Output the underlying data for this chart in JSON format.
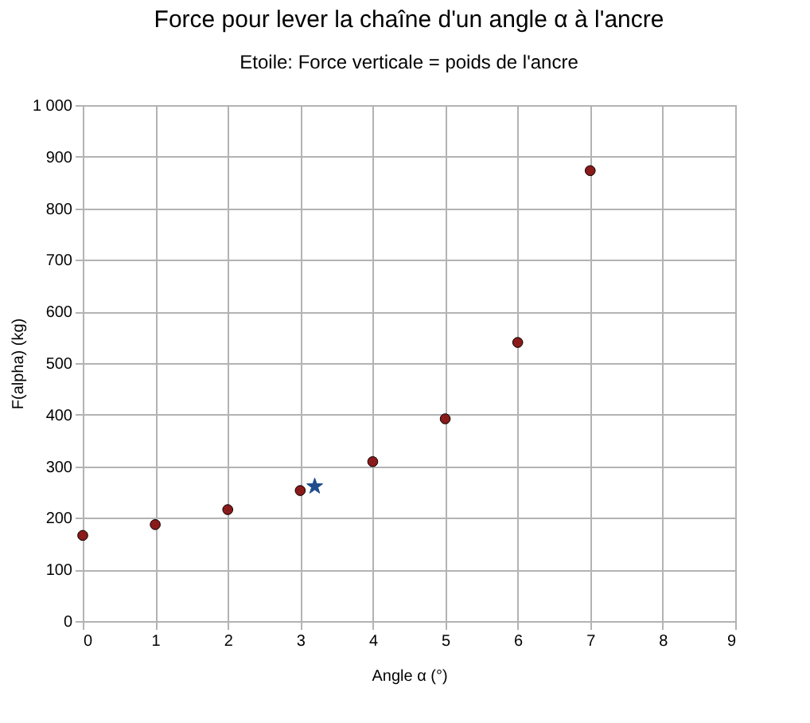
{
  "chart_data": {
    "type": "scatter",
    "title": "Force pour lever la chaîne d'un angle α à l'ancre",
    "subtitle": "Etoile: Force verticale = poids de l'ancre",
    "xlabel": "Angle α (°)",
    "ylabel": "F(alpha) (kg)",
    "series": [
      {
        "color": "#8b1a1a",
        "marker": "circle",
        "x": [
          0,
          1,
          2,
          3,
          4,
          5,
          6,
          7
        ],
        "values": [
          166,
          187,
          216,
          253,
          309,
          392,
          540,
          873
        ]
      },
      {
        "color": "#1f4e8c",
        "marker": "star",
        "x": [
          3.2
        ],
        "values": [
          261
        ]
      }
    ],
    "xlim": [
      0,
      9
    ],
    "xticks": [
      0,
      1,
      2,
      3,
      4,
      5,
      6,
      7,
      8,
      9
    ],
    "ylim": [
      0,
      1000
    ],
    "yticks": [
      0,
      100,
      200,
      300,
      400,
      500,
      600,
      700,
      800,
      900,
      {
        "value": 1000,
        "label": "1 000"
      }
    ],
    "grid": true
  }
}
